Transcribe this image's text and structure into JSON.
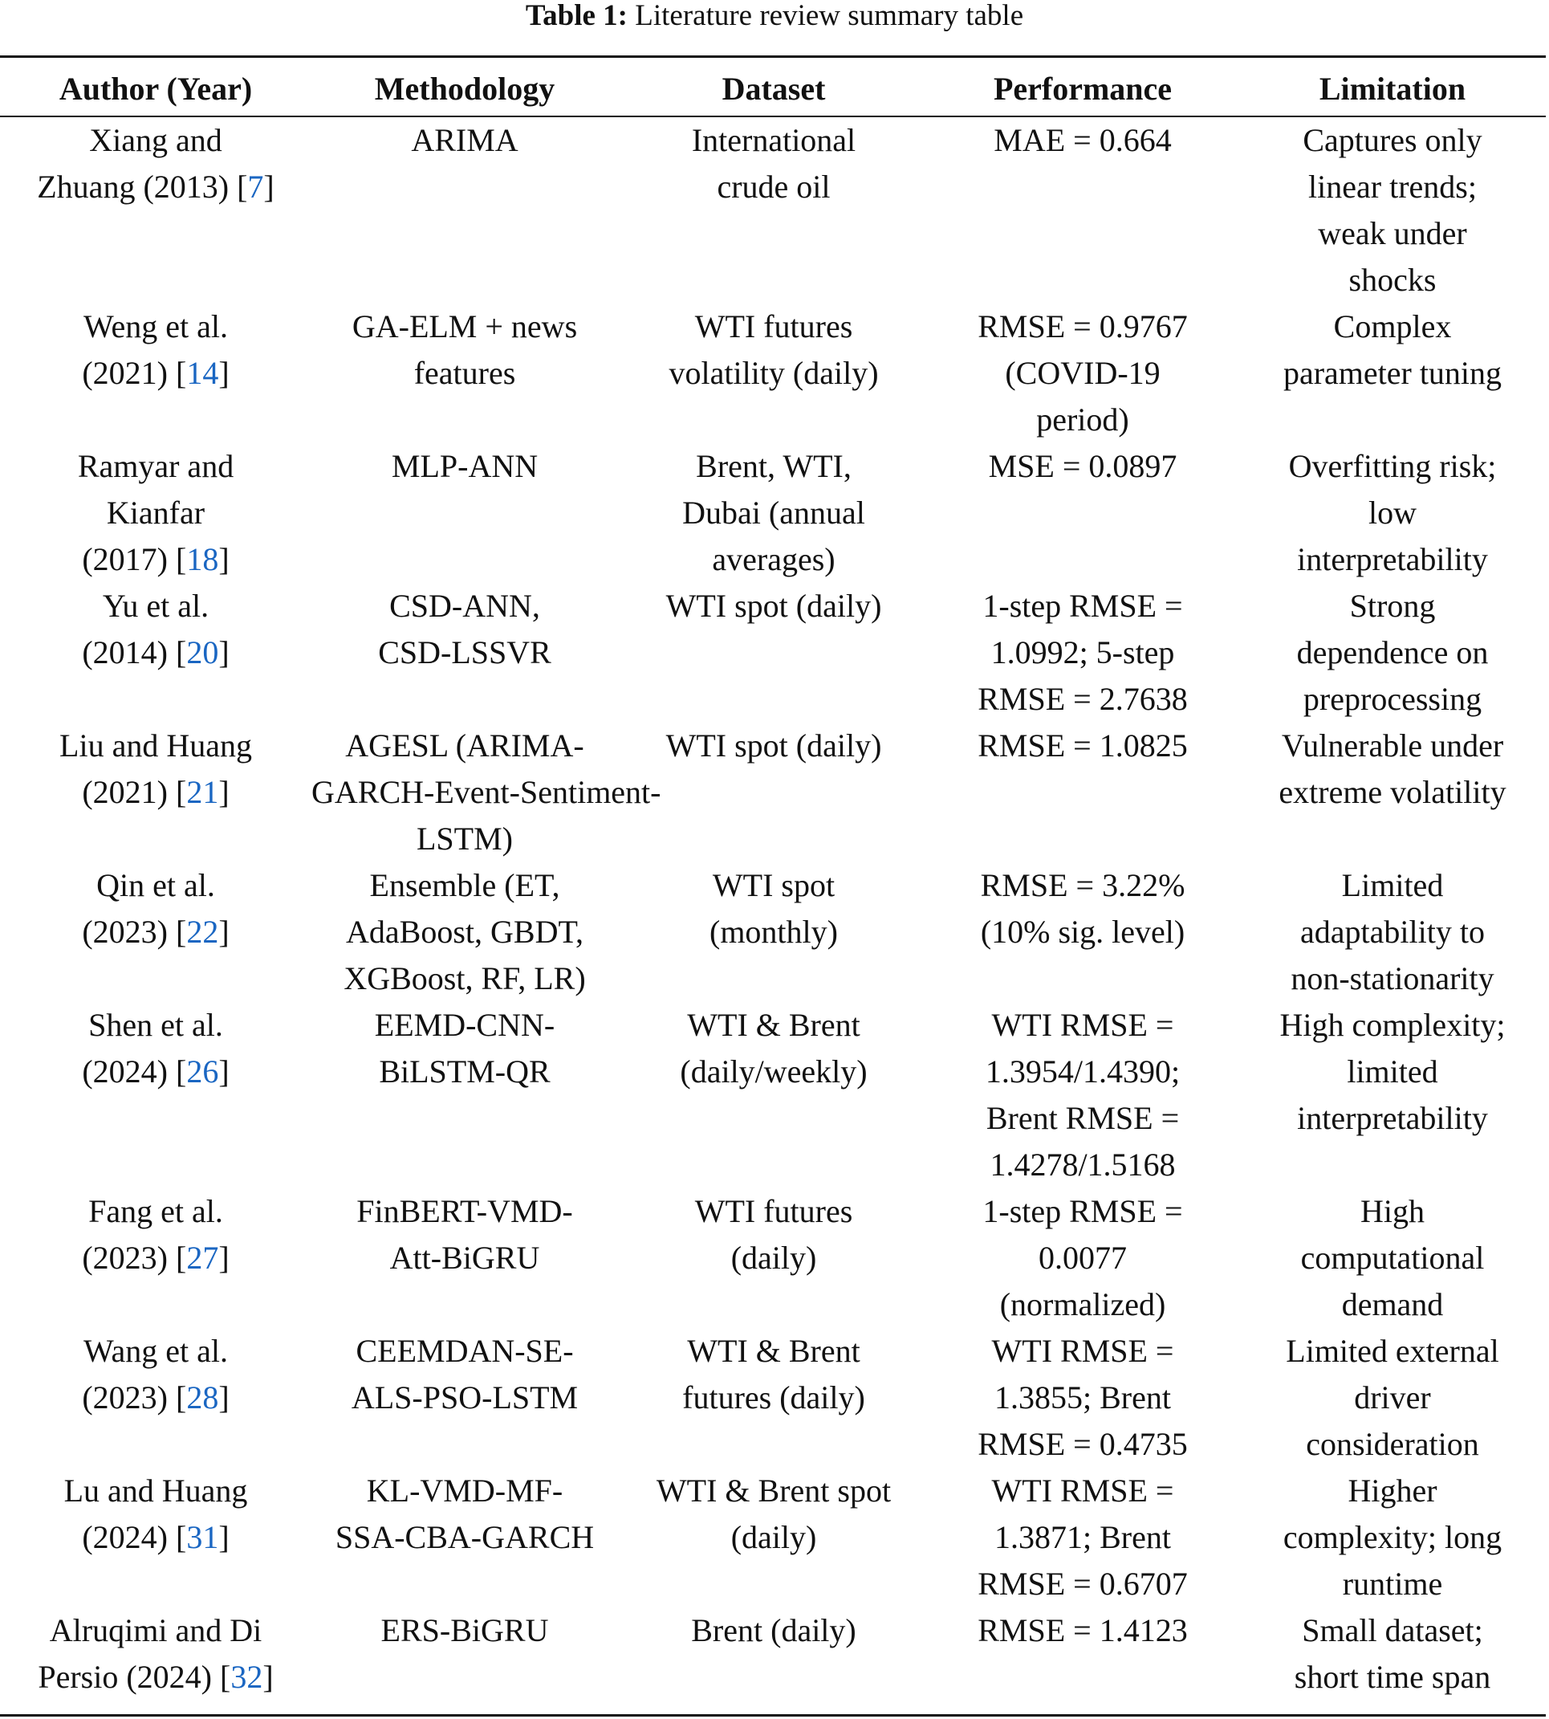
{
  "caption": {
    "label": "Table 1:",
    "text": "Literature review summary table"
  },
  "headers": [
    "Author (Year)",
    "Methodology",
    "Dataset",
    "Performance",
    "Limitation"
  ],
  "link_color": "#1a66c2",
  "rows": [
    {
      "author": [
        "Xiang and",
        "Zhuang (2013)"
      ],
      "ref": "7",
      "method": [
        "ARIMA"
      ],
      "dataset": [
        "International",
        "crude oil"
      ],
      "performance": [
        "MAE = 0.664"
      ],
      "limitation": [
        "Captures only",
        "linear trends;",
        "weak under",
        "shocks"
      ]
    },
    {
      "author": [
        "Weng et al.",
        "(2021)"
      ],
      "ref": "14",
      "method": [
        "GA-ELM + news",
        "features"
      ],
      "dataset": [
        "WTI futures",
        "volatility (daily)"
      ],
      "performance": [
        "RMSE = 0.9767",
        "(COVID-19",
        "period)"
      ],
      "limitation": [
        "Complex",
        "parameter tuning"
      ]
    },
    {
      "author": [
        "Ramyar and",
        "Kianfar",
        "(2017)"
      ],
      "ref": "18",
      "method": [
        "MLP-ANN"
      ],
      "dataset": [
        "Brent, WTI,",
        "Dubai (annual",
        "averages)"
      ],
      "performance": [
        "MSE = 0.0897"
      ],
      "limitation": [
        "Overfitting risk;",
        "low",
        "interpretability"
      ]
    },
    {
      "author": [
        "Yu et al.",
        "(2014)"
      ],
      "ref": "20",
      "method": [
        "CSD-ANN,",
        "CSD-LSSVR"
      ],
      "dataset": [
        "WTI spot (daily)"
      ],
      "performance": [
        "1-step RMSE =",
        "1.0992; 5-step",
        "RMSE = 2.7638"
      ],
      "limitation": [
        "Strong",
        "dependence on",
        "preprocessing"
      ]
    },
    {
      "author": [
        "Liu and Huang",
        "(2021)"
      ],
      "ref": "21",
      "method": [
        "AGESL (ARIMA-",
        "GARCH-Event-Sentiment-",
        "LSTM)"
      ],
      "dataset": [
        "WTI spot (daily)"
      ],
      "performance": [
        "RMSE = 1.0825"
      ],
      "limitation": [
        "Vulnerable under",
        "extreme volatility"
      ]
    },
    {
      "author": [
        "Qin et al.",
        "(2023)"
      ],
      "ref": "22",
      "method": [
        "Ensemble (ET,",
        "AdaBoost, GBDT,",
        "XGBoost, RF, LR)"
      ],
      "dataset": [
        "WTI spot",
        "(monthly)"
      ],
      "performance": [
        "RMSE = 3.22%",
        "(10% sig. level)"
      ],
      "limitation": [
        "Limited",
        "adaptability to",
        "non-stationarity"
      ]
    },
    {
      "author": [
        "Shen et al.",
        "(2024)"
      ],
      "ref": "26",
      "method": [
        "EEMD-CNN-",
        "BiLSTM-QR"
      ],
      "dataset": [
        "WTI & Brent",
        "(daily/weekly)"
      ],
      "performance": [
        "WTI RMSE =",
        "1.3954/1.4390;",
        "Brent RMSE =",
        "1.4278/1.5168"
      ],
      "limitation": [
        "High complexity;",
        "limited",
        "interpretability"
      ]
    },
    {
      "author": [
        "Fang et al.",
        "(2023)"
      ],
      "ref": "27",
      "method": [
        "FinBERT-VMD-",
        "Att-BiGRU"
      ],
      "dataset": [
        "WTI futures",
        "(daily)"
      ],
      "performance": [
        "1-step RMSE =",
        "0.0077",
        "(normalized)"
      ],
      "limitation": [
        "High",
        "computational",
        "demand"
      ]
    },
    {
      "author": [
        "Wang et al.",
        "(2023)"
      ],
      "ref": "28",
      "method": [
        "CEEMDAN-SE-",
        "ALS-PSO-LSTM"
      ],
      "dataset": [
        "WTI & Brent",
        "futures (daily)"
      ],
      "performance": [
        "WTI RMSE =",
        "1.3855; Brent",
        "RMSE = 0.4735"
      ],
      "limitation": [
        "Limited external",
        "driver",
        "consideration"
      ]
    },
    {
      "author": [
        "Lu and Huang",
        "(2024)"
      ],
      "ref": "31",
      "method": [
        "KL-VMD-MF-",
        "SSA-CBA-GARCH"
      ],
      "dataset": [
        "WTI & Brent spot",
        "(daily)"
      ],
      "performance": [
        "WTI RMSE =",
        "1.3871; Brent",
        "RMSE = 0.6707"
      ],
      "limitation": [
        "Higher",
        "complexity; long",
        "runtime"
      ]
    },
    {
      "author": [
        "Alruqimi and Di",
        "Persio (2024)"
      ],
      "ref": "32",
      "method": [
        "ERS-BiGRU"
      ],
      "dataset": [
        "Brent (daily)"
      ],
      "performance": [
        "RMSE = 1.4123"
      ],
      "limitation": [
        "Small dataset;",
        "short time span"
      ]
    }
  ]
}
